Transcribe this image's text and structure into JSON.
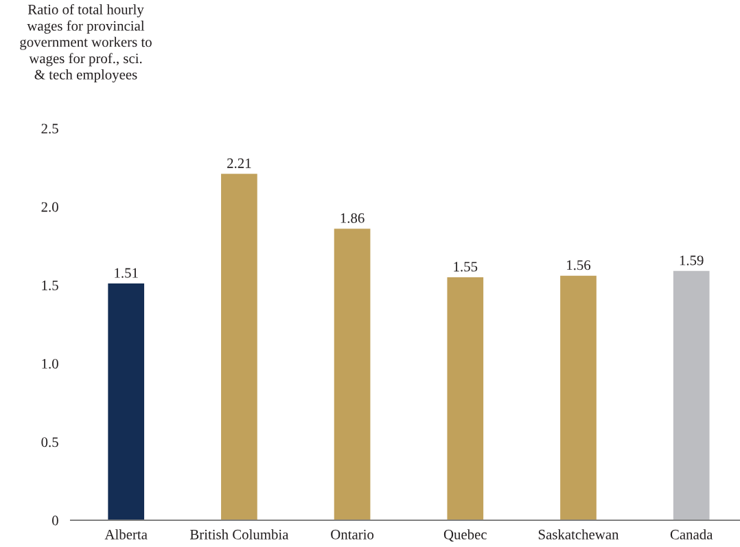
{
  "chart_data": {
    "type": "bar",
    "ylabel": "Ratio of total hourly\nwages for provincial\ngovernment workers to\nwages for prof., sci.\n& tech employees",
    "categories": [
      "Alberta",
      "British Columbia",
      "Ontario",
      "Quebec",
      "Saskatchewan",
      "Canada"
    ],
    "values": [
      1.51,
      2.21,
      1.86,
      1.55,
      1.56,
      1.59
    ],
    "colors": [
      "#142d54",
      "#c1a15b",
      "#c1a15b",
      "#c1a15b",
      "#c1a15b",
      "#bcbdc1"
    ],
    "ylim": [
      0,
      2.5
    ],
    "yticks": [
      0,
      0.5,
      {
        "value": 1,
        "label": "1.0"
      },
      1.5,
      {
        "value": 2,
        "label": "2.0"
      },
      2.5
    ],
    "data_labels": true
  }
}
